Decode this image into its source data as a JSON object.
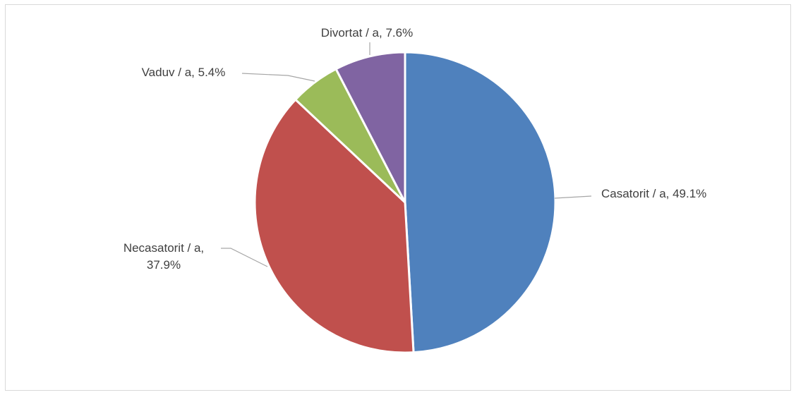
{
  "chart_data": {
    "type": "pie",
    "title": "",
    "legend": "none",
    "slices": [
      {
        "label": "Casatorit / a",
        "value": 49.1,
        "display": "Casatorit / a, 49.1%",
        "color": "#4F81BD"
      },
      {
        "label": "Necasatorit / a",
        "value": 37.9,
        "display": "Necasatorit / a, 37.9%",
        "color": "#C0504D"
      },
      {
        "label": "Vaduv / a",
        "value": 5.4,
        "display": "Vaduv / a, 5.4%",
        "color": "#9BBB59"
      },
      {
        "label": "Divortat / a",
        "value": 7.6,
        "display": "Divortat / a, 7.6%",
        "color": "#8064A2"
      }
    ]
  }
}
